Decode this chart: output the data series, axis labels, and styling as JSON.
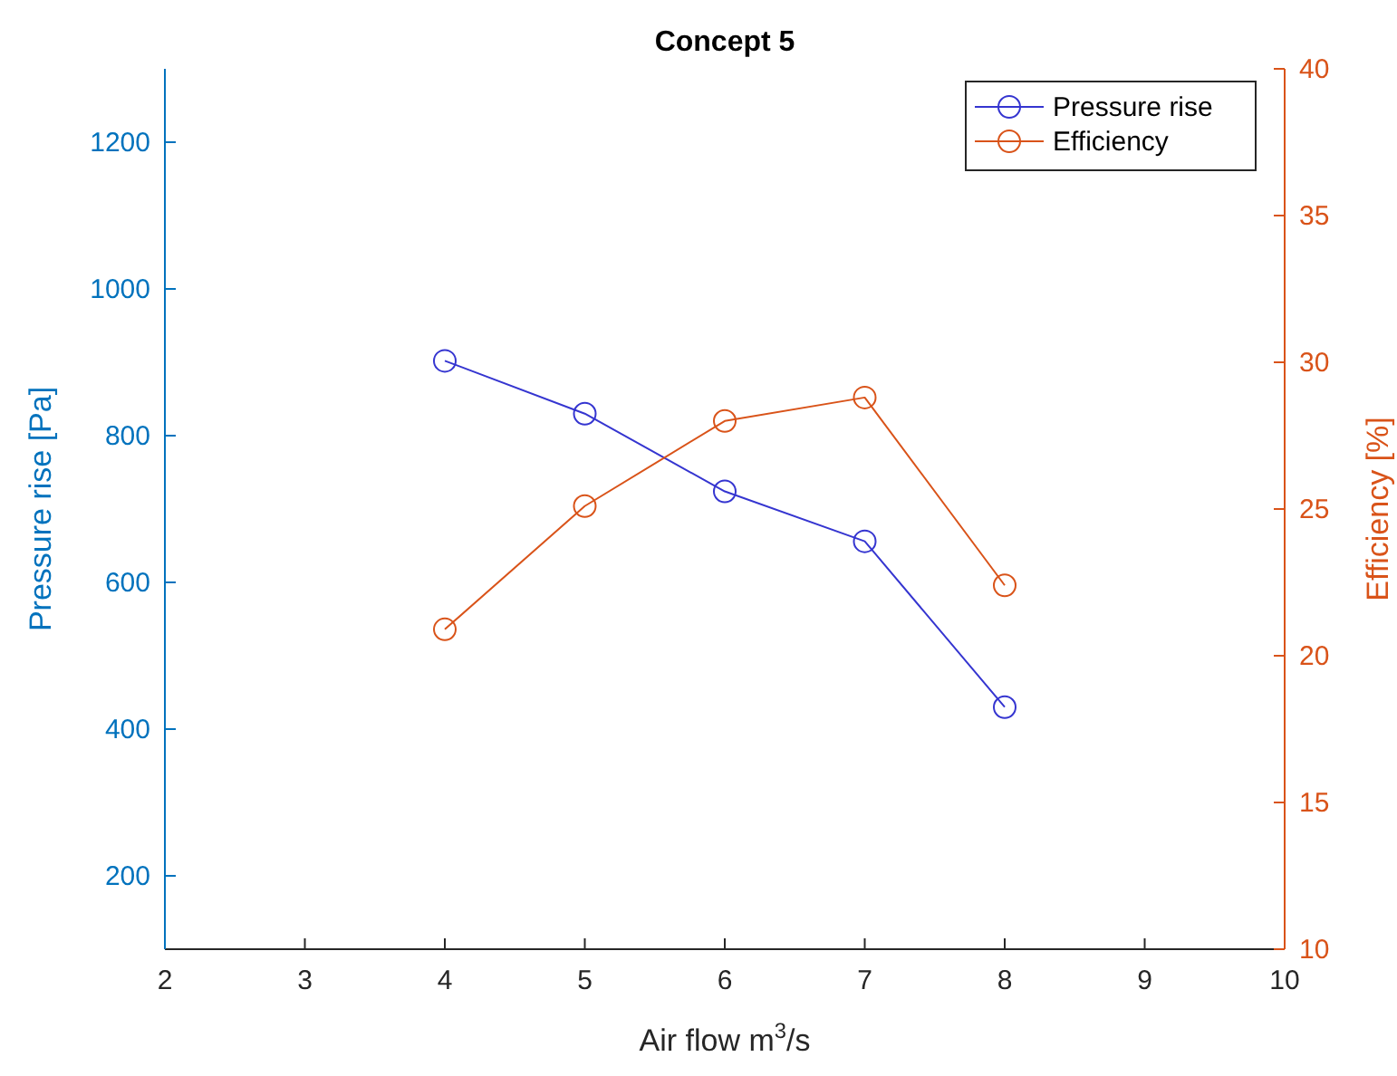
{
  "chart_data": {
    "type": "line",
    "title": "Concept 5",
    "xlabel": "Air flow m$^{3}$/s",
    "ylabel": "Pressure rise [Pa]",
    "y2label": "Efficiency [%]",
    "x": [
      4,
      5,
      6,
      7,
      8
    ],
    "series": [
      {
        "name": "Pressure rise",
        "color": "#3535d0",
        "values": [
          902,
          830,
          724,
          656,
          430
        ]
      },
      {
        "name": "Efficiency",
        "color": "#d95319",
        "axis": "y2",
        "values": [
          20.9,
          25.1,
          28.0,
          28.8,
          22.4
        ]
      }
    ],
    "xlim": [
      2,
      10
    ],
    "xticks": [
      2,
      3,
      4,
      5,
      6,
      7,
      8,
      9,
      10
    ],
    "ylim": [
      100,
      1300
    ],
    "yticks": [
      200,
      400,
      600,
      800,
      1000,
      1200
    ],
    "y2lim": [
      10,
      40
    ],
    "y2ticks": [
      10,
      15,
      20,
      25,
      30,
      35,
      40
    ],
    "grid": false,
    "legend": "top right",
    "marker": "circle",
    "line_style": "solid"
  }
}
